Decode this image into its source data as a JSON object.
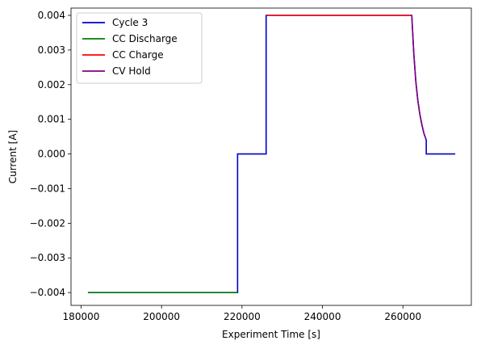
{
  "chart_data": {
    "type": "line",
    "xlabel": "Experiment Time [s]",
    "ylabel": "Current [A]",
    "xlim": [
      177500,
      277000
    ],
    "ylim": [
      -0.00437,
      0.00421
    ],
    "xticks": [
      180000,
      200000,
      220000,
      240000,
      260000
    ],
    "xtick_labels": [
      "180000",
      "200000",
      "220000",
      "240000",
      "260000"
    ],
    "yticks": [
      -0.004,
      -0.003,
      -0.002,
      -0.001,
      0.0,
      0.001,
      0.002,
      0.003,
      0.004
    ],
    "ytick_labels": [
      "−0.004",
      "−0.003",
      "−0.002",
      "−0.001",
      "0.000",
      "0.001",
      "0.002",
      "0.003",
      "0.004"
    ],
    "grid": false,
    "legend_position": "upper-left",
    "series": [
      {
        "name": "Cycle 3",
        "color": "#0000cc",
        "x": [
          181700,
          218900,
          218900,
          226000,
          226000,
          262200,
          262700,
          263200,
          263700,
          264200,
          264700,
          265200,
          265800,
          265800,
          273000
        ],
        "y": [
          -0.004,
          -0.004,
          0.0,
          0.0,
          0.004,
          0.004,
          0.0029,
          0.0021,
          0.00155,
          0.00115,
          0.00085,
          0.0006,
          0.0004,
          0.0,
          0.0
        ]
      },
      {
        "name": "CC Discharge",
        "color": "#008000",
        "x": [
          181700,
          218900
        ],
        "y": [
          -0.004,
          -0.004
        ]
      },
      {
        "name": "CC Charge",
        "color": "#ff0000",
        "x": [
          226000,
          262200
        ],
        "y": [
          0.004,
          0.004
        ]
      },
      {
        "name": "CV Hold",
        "color": "#800080",
        "x": [
          262200,
          262700,
          263200,
          263700,
          264200,
          264700,
          265200,
          265800
        ],
        "y": [
          0.004,
          0.0029,
          0.0021,
          0.00155,
          0.00115,
          0.00085,
          0.0006,
          0.0004
        ]
      }
    ]
  }
}
